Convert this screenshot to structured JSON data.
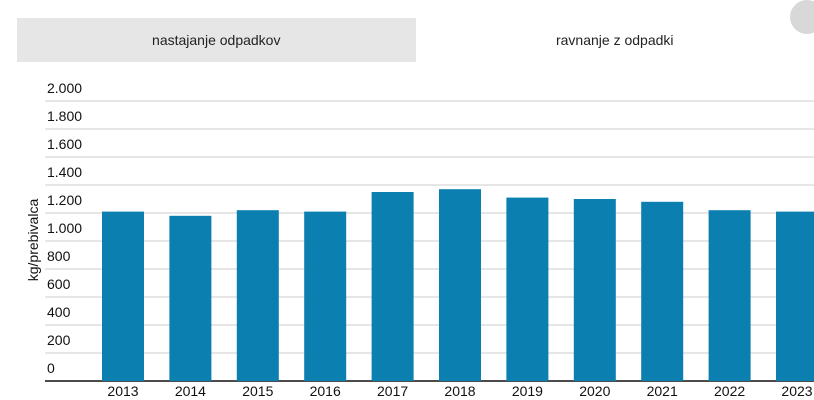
{
  "tabs": [
    "nastajanje odpadkov",
    "ravnanje z odpadki"
  ],
  "chart_data": {
    "type": "bar",
    "y_label": "kg/prebivalca",
    "categories": [
      "2013",
      "2014",
      "2015",
      "2016",
      "2017",
      "2018",
      "2019",
      "2020",
      "2021",
      "2022",
      "2023"
    ],
    "values": [
      1210,
      1180,
      1220,
      1210,
      1350,
      1370,
      1310,
      1300,
      1280,
      1220,
      1210
    ],
    "color": "#0a7fb0",
    "ylim": [
      0,
      2000
    ],
    "yticks": [
      0,
      200,
      400,
      600,
      800,
      {
        "value": 1000,
        "label": "1.000"
      },
      {
        "value": 1200,
        "label": "1.200"
      },
      {
        "value": 1400,
        "label": "1.400"
      },
      {
        "value": 1600,
        "label": "1.600"
      },
      {
        "value": 1800,
        "label": "1.800"
      },
      {
        "value": 2000,
        "label": "2.000"
      }
    ],
    "grid": true
  }
}
